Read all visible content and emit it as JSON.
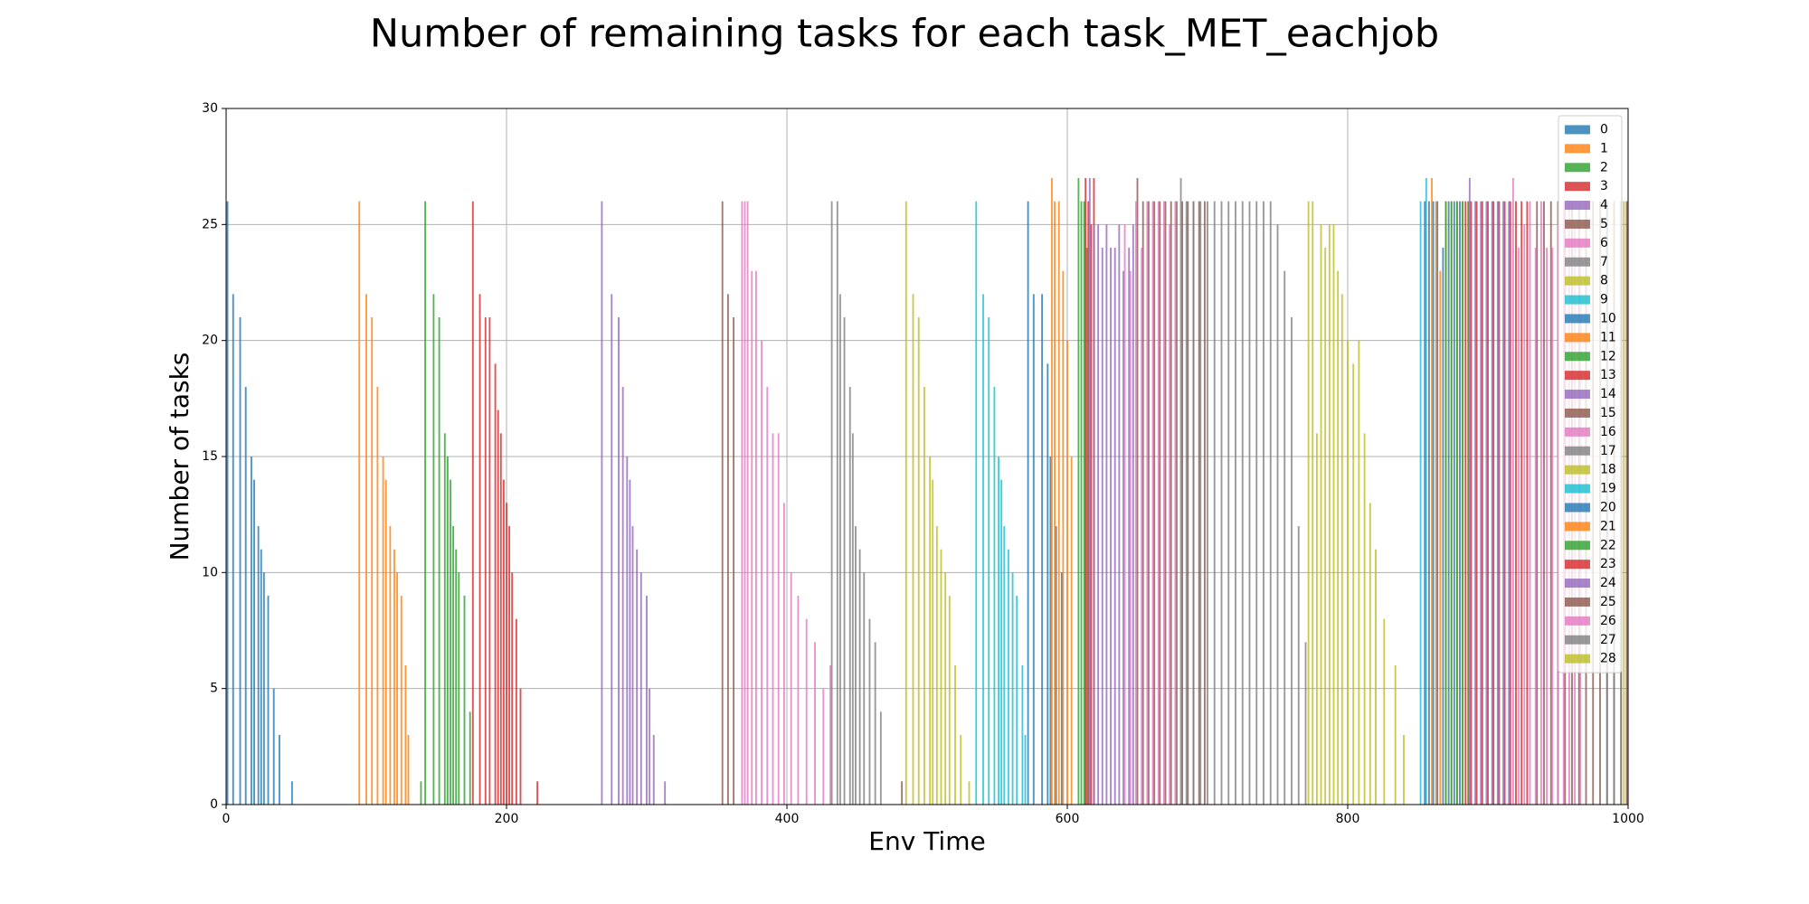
{
  "chart_data": {
    "type": "bar",
    "title": "Number of remaining tasks for each task_MET_eachjob",
    "x_label": "Env Time",
    "y_label": "Number of tasks",
    "xlim": [
      0,
      1000
    ],
    "ylim": [
      0,
      30
    ],
    "xticks": [
      0,
      200,
      400,
      600,
      800,
      1000
    ],
    "yticks": [
      0,
      5,
      10,
      15,
      20,
      25,
      30
    ],
    "grid": true,
    "legend": "upper right",
    "series": [
      {
        "name": "0",
        "color": "#1f77b4",
        "x": [
          1,
          5,
          10,
          14,
          18,
          20,
          23,
          25,
          27,
          30,
          34,
          38,
          47
        ],
        "values": [
          26,
          22,
          21,
          18,
          15,
          14,
          12,
          11,
          10,
          9,
          5,
          3,
          1
        ]
      },
      {
        "name": "1",
        "color": "#ff7f0e",
        "x": [
          95,
          100,
          104,
          108,
          112,
          114,
          117,
          120,
          122,
          125,
          128,
          130
        ],
        "values": [
          26,
          22,
          21,
          18,
          15,
          14,
          12,
          11,
          10,
          9,
          6,
          3
        ]
      },
      {
        "name": "2",
        "color": "#2ca02c",
        "x": [
          139,
          142,
          148,
          152,
          156,
          158,
          160,
          162,
          164,
          166,
          170,
          174
        ],
        "values": [
          1,
          26,
          22,
          21,
          16,
          15,
          14,
          12,
          11,
          10,
          9,
          4
        ]
      },
      {
        "name": "3",
        "color": "#d62728",
        "x": [
          176,
          181,
          185,
          188,
          192,
          194,
          196,
          198,
          200,
          202,
          204,
          207,
          210,
          222
        ],
        "values": [
          26,
          22,
          21,
          21,
          19,
          17,
          16,
          14,
          13,
          12,
          10,
          8,
          5,
          1
        ]
      },
      {
        "name": "4",
        "color": "#9467bd",
        "x": [
          268,
          275,
          280,
          283,
          286,
          288,
          290,
          293,
          296,
          300,
          302,
          305,
          313
        ],
        "values": [
          26,
          22,
          21,
          18,
          15,
          14,
          12,
          11,
          10,
          9,
          5,
          3,
          1
        ]
      },
      {
        "name": "5",
        "color": "#8c564b",
        "x": [
          354,
          358,
          362,
          482
        ],
        "values": [
          26,
          22,
          21,
          1
        ]
      },
      {
        "name": "6",
        "color": "#e377c2",
        "x": [
          368,
          370,
          372,
          375,
          378,
          382,
          386,
          390,
          394,
          398,
          403,
          408,
          414,
          420,
          426,
          431
        ],
        "values": [
          26,
          26,
          26,
          23,
          23,
          20,
          18,
          16,
          16,
          13,
          10,
          9,
          8,
          7,
          5,
          6
        ]
      },
      {
        "name": "7",
        "color": "#7f7f7f",
        "x": [
          432,
          436,
          438,
          441,
          445,
          447,
          449,
          452,
          455,
          459,
          463,
          467
        ],
        "values": [
          26,
          26,
          22,
          21,
          18,
          16,
          12,
          11,
          10,
          8,
          7,
          4
        ]
      },
      {
        "name": "8",
        "color": "#bcbd22",
        "x": [
          485,
          490,
          494,
          498,
          502,
          504,
          507,
          510,
          513,
          516,
          520,
          524,
          530
        ],
        "values": [
          26,
          22,
          21,
          18,
          15,
          14,
          12,
          11,
          10,
          9,
          6,
          3,
          1
        ]
      },
      {
        "name": "9",
        "color": "#17becf",
        "x": [
          535,
          540,
          544,
          548,
          551,
          553,
          555,
          558,
          561,
          564,
          568,
          570
        ],
        "values": [
          26,
          22,
          21,
          18,
          15,
          14,
          12,
          11,
          10,
          9,
          6,
          3
        ]
      },
      {
        "name": "10",
        "color": "#1f77b4",
        "x": [
          572,
          576,
          582,
          586,
          588,
          592,
          596
        ],
        "values": [
          26,
          22,
          22,
          19,
          15,
          12,
          10
        ]
      },
      {
        "name": "11",
        "color": "#ff7f0e",
        "x": [
          589,
          591,
          594,
          597,
          600,
          603
        ],
        "values": [
          27,
          26,
          26,
          23,
          20,
          15
        ]
      },
      {
        "name": "12",
        "color": "#2ca02c",
        "x": [
          608,
          610,
          612,
          614
        ],
        "values": [
          27,
          26,
          26,
          24
        ]
      },
      {
        "name": "13",
        "color": "#d62728",
        "x": [
          613,
          615,
          617,
          619
        ],
        "values": [
          27,
          26,
          25,
          27
        ]
      },
      {
        "name": "14",
        "color": "#9467bd",
        "x": [
          616,
          619,
          622,
          625,
          628,
          631,
          634,
          637,
          640,
          644,
          647
        ],
        "values": [
          27,
          25,
          25,
          24,
          25,
          24,
          24,
          25,
          23,
          24,
          25
        ]
      },
      {
        "name": "15",
        "color": "#8c564b",
        "x": [
          650,
          654,
          658,
          662,
          666,
          670,
          674,
          678,
          682,
          686,
          690,
          694,
          698
        ],
        "values": [
          27,
          26,
          26,
          26,
          26,
          26,
          26,
          26,
          26,
          26,
          26,
          26,
          26
        ]
      },
      {
        "name": "16",
        "color": "#e377c2",
        "x": [
          641,
          645,
          649,
          653,
          657,
          661,
          665,
          669,
          673,
          677
        ],
        "values": [
          25,
          23,
          26,
          24,
          26,
          26,
          26,
          26,
          25,
          26
        ]
      },
      {
        "name": "17",
        "color": "#7f7f7f",
        "x": [
          681,
          685,
          690,
          695,
          700,
          705,
          710,
          715,
          720,
          725,
          730,
          735,
          740,
          745,
          750,
          755,
          760,
          765,
          770
        ],
        "values": [
          27,
          26,
          26,
          26,
          26,
          26,
          26,
          26,
          26,
          26,
          26,
          26,
          26,
          26,
          25,
          23,
          21,
          12,
          7
        ]
      },
      {
        "name": "18",
        "color": "#bcbd22",
        "x": [
          772,
          775,
          778,
          781,
          784,
          787,
          790,
          793,
          796,
          800,
          804,
          808,
          812,
          816,
          820,
          826,
          834,
          840
        ],
        "values": [
          26,
          26,
          16,
          25,
          24,
          25,
          25,
          23,
          22,
          20,
          19,
          20,
          16,
          13,
          11,
          8,
          6,
          3
        ]
      },
      {
        "name": "19",
        "color": "#17becf",
        "x": [
          852,
          856
        ],
        "values": [
          26,
          27
        ]
      },
      {
        "name": "20",
        "color": "#1f77b4",
        "x": [
          855,
          858,
          861,
          864,
          868,
          872,
          876,
          880
        ],
        "values": [
          26,
          26,
          26,
          26,
          24,
          26,
          26,
          26
        ]
      },
      {
        "name": "21",
        "color": "#ff7f0e",
        "x": [
          860,
          863,
          866,
          870,
          874,
          878,
          882,
          886
        ],
        "values": [
          27,
          26,
          23,
          26,
          26,
          26,
          26,
          26
        ]
      },
      {
        "name": "22",
        "color": "#2ca02c",
        "x": [
          870,
          874,
          878,
          882,
          886
        ],
        "values": [
          26,
          26,
          26,
          26,
          26
        ]
      },
      {
        "name": "23",
        "color": "#d62728",
        "x": [
          884,
          888,
          892,
          896,
          900,
          904,
          908,
          912,
          916,
          920,
          924,
          928
        ],
        "values": [
          26,
          26,
          26,
          26,
          26,
          26,
          26,
          26,
          26,
          26,
          26,
          26
        ]
      },
      {
        "name": "24",
        "color": "#9467bd",
        "x": [
          887,
          891,
          895,
          899,
          903,
          907,
          911,
          915
        ],
        "values": [
          27,
          26,
          26,
          26,
          26,
          26,
          26,
          26
        ]
      },
      {
        "name": "25",
        "color": "#8c564b",
        "x": [
          935,
          940,
          945,
          950,
          955,
          960,
          965,
          970,
          975,
          980,
          985,
          990,
          995,
          999
        ],
        "values": [
          26,
          26,
          26,
          26,
          26,
          26,
          26,
          26,
          26,
          26,
          26,
          26,
          26,
          26
        ]
      },
      {
        "name": "26",
        "color": "#e377c2",
        "x": [
          918,
          922,
          926,
          930,
          934,
          938,
          942,
          946,
          950,
          954,
          958,
          962,
          966
        ],
        "values": [
          27,
          24,
          25,
          26,
          24,
          26,
          24,
          24,
          25,
          26,
          26,
          25,
          24
        ]
      },
      {
        "name": "27",
        "color": "#7f7f7f",
        "x": [
          985,
          990,
          995
        ],
        "values": [
          26,
          9,
          8
        ]
      },
      {
        "name": "28",
        "color": "#bcbd22",
        "x": [
          997
        ],
        "values": [
          26
        ]
      }
    ]
  }
}
